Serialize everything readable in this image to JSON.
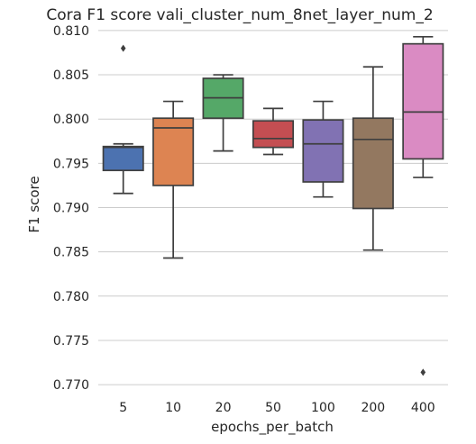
{
  "chart_data": {
    "type": "box",
    "title": "Cora F1 score vali_cluster_num_8net_layer_num_2",
    "xlabel": "epochs_per_batch",
    "ylabel": "F1 score",
    "ylim": [
      0.7695,
      0.8105
    ],
    "yticks": [
      "0.770",
      "0.775",
      "0.780",
      "0.785",
      "0.790",
      "0.795",
      "0.800",
      "0.805",
      "0.810"
    ],
    "grid": "horizontal",
    "categories": [
      "5",
      "10",
      "20",
      "50",
      "100",
      "200",
      "400"
    ],
    "boxes": [
      {
        "category": "5",
        "color": "#4c72b0",
        "whisker_low": 0.7916,
        "q1": 0.7942,
        "median": 0.7968,
        "q3": 0.7969,
        "whisker_high": 0.7972,
        "outliers": [
          0.808
        ]
      },
      {
        "category": "10",
        "color": "#dd8452",
        "whisker_low": 0.7843,
        "q1": 0.7925,
        "median": 0.799,
        "q3": 0.8001,
        "whisker_high": 0.802,
        "outliers": []
      },
      {
        "category": "20",
        "color": "#55a868",
        "whisker_low": 0.7964,
        "q1": 0.8001,
        "median": 0.8024,
        "q3": 0.8046,
        "whisker_high": 0.805,
        "outliers": []
      },
      {
        "category": "50",
        "color": "#c44e52",
        "whisker_low": 0.796,
        "q1": 0.7968,
        "median": 0.7978,
        "q3": 0.7998,
        "whisker_high": 0.8012,
        "outliers": []
      },
      {
        "category": "100",
        "color": "#8172b3",
        "whisker_low": 0.7912,
        "q1": 0.7929,
        "median": 0.7972,
        "q3": 0.7999,
        "whisker_high": 0.802,
        "outliers": []
      },
      {
        "category": "200",
        "color": "#937860",
        "whisker_low": 0.7852,
        "q1": 0.7899,
        "median": 0.7977,
        "q3": 0.8001,
        "whisker_high": 0.8059,
        "outliers": []
      },
      {
        "category": "400",
        "color": "#da8bc3",
        "whisker_low": 0.7934,
        "q1": 0.7955,
        "median": 0.8008,
        "q3": 0.8085,
        "whisker_high": 0.8093,
        "outliers": [
          0.7714
        ]
      }
    ]
  }
}
